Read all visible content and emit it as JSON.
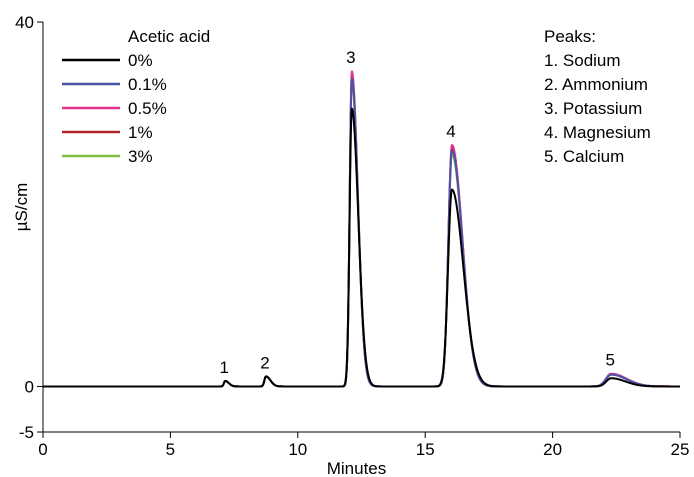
{
  "chart_data": {
    "type": "line",
    "xlabel": "Minutes",
    "ylabel": "µS/cm",
    "xlim": [
      0,
      25
    ],
    "ylim": [
      -5,
      40
    ],
    "x_ticks": [
      "0",
      "5",
      "10",
      "15",
      "20",
      "25"
    ],
    "y_ticks": [
      "-5",
      "0",
      "40"
    ],
    "grid": false,
    "legend": {
      "title": "Acetic acid",
      "placement": "top-left"
    },
    "series": [
      {
        "name": "0%",
        "color": "#000000",
        "peak_heights": [
          0.6,
          1.1,
          30.5,
          21.6,
          0.9
        ],
        "peak_widths": [
          0.09,
          0.11,
          0.16,
          0.28,
          0.35
        ]
      },
      {
        "name": "0.1%",
        "color": "#4b53a8",
        "peak_heights": [
          0.6,
          1.1,
          33.8,
          25.9,
          1.3
        ],
        "peak_widths": [
          0.09,
          0.11,
          0.15,
          0.26,
          0.38
        ]
      },
      {
        "name": "0.5%",
        "color": "#e0338a",
        "peak_heights": [
          0.6,
          1.1,
          34.6,
          26.5,
          1.4
        ],
        "peak_widths": [
          0.09,
          0.11,
          0.15,
          0.26,
          0.38
        ]
      },
      {
        "name": "1%",
        "color": "#b22329",
        "peak_heights": [
          0.6,
          1.1,
          34.2,
          26.2,
          1.3
        ],
        "peak_widths": [
          0.09,
          0.11,
          0.15,
          0.26,
          0.38
        ]
      },
      {
        "name": "3%",
        "color": "#7fbf3f",
        "peak_heights": [
          0.6,
          1.1,
          33.4,
          25.5,
          1.3
        ],
        "peak_widths": [
          0.09,
          0.11,
          0.15,
          0.26,
          0.38
        ]
      }
    ],
    "peaks": {
      "title": "Peaks:",
      "items": [
        {
          "number": "1",
          "name": "Sodium",
          "retention_min": 7.15
        },
        {
          "number": "2",
          "name": "Ammonium",
          "retention_min": 8.75
        },
        {
          "number": "3",
          "name": "Potassium",
          "retention_min": 12.12
        },
        {
          "number": "4",
          "name": "Magnesium",
          "retention_min": 16.05
        },
        {
          "number": "5",
          "name": "Calcium",
          "retention_min": 22.3
        }
      ],
      "list_labels": [
        "1. Sodium",
        "2. Ammonium",
        "3. Potassium",
        "4. Magnesium",
        "5. Calcium"
      ]
    }
  }
}
